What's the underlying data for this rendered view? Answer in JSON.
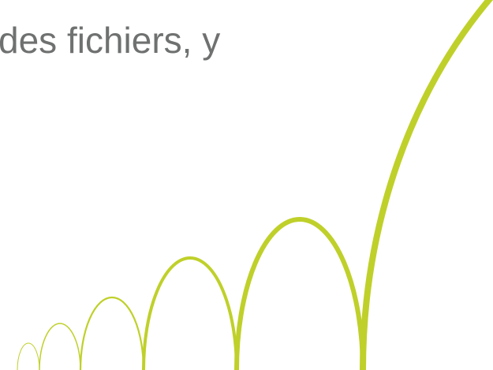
{
  "text": "des fichiers, y"
}
